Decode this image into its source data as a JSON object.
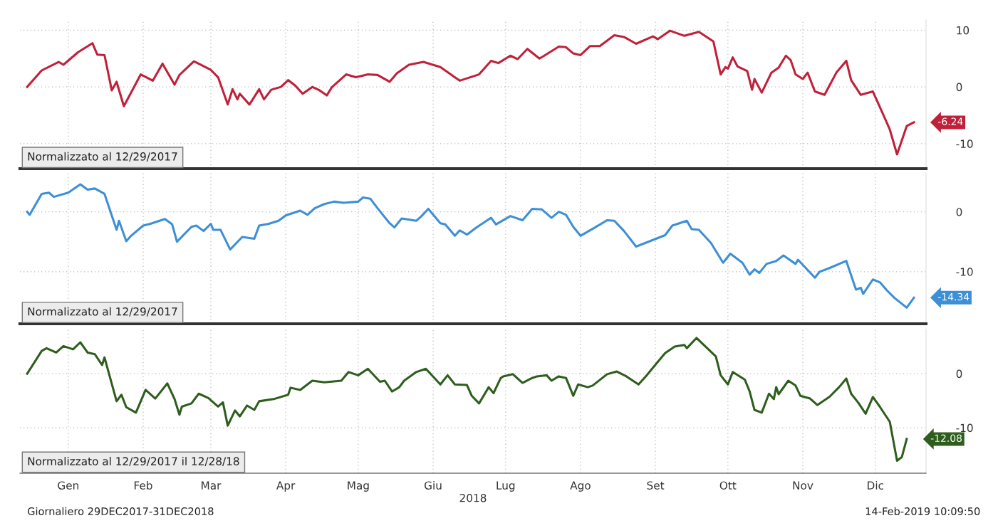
{
  "chart_data": [
    {
      "type": "line",
      "tick_labels": "y",
      "grid": true,
      "xlim": [
        "2017-12-26",
        "2019-01-05"
      ],
      "ylim": [
        -14.4,
        11.8
      ],
      "yticks": [
        10,
        0,
        -10
      ],
      "xticks": [
        {
          "value": "2018-01-15",
          "label": null
        },
        {
          "value": "2018-02-15",
          "label": null
        },
        {
          "value": "2018-03-15",
          "label": null
        },
        {
          "value": "2018-04-15",
          "label": null
        },
        {
          "value": "2018-05-15",
          "label": null
        },
        {
          "value": "2018-06-15",
          "label": null
        },
        {
          "value": "2018-07-15",
          "label": null
        },
        {
          "value": "2018-08-15",
          "label": null
        },
        {
          "value": "2018-09-15",
          "label": null
        },
        {
          "value": "2018-10-15",
          "label": null
        },
        {
          "value": "2018-11-15",
          "label": null
        },
        {
          "value": "2018-12-15",
          "label": null
        }
      ],
      "annotations": [
        "Normalizzato al 12/29/2017",
        {
          "text": "-6.24",
          "x": "2018-12-31",
          "y": -6.24
        }
      ],
      "series": [
        {
          "color": "#c0213a",
          "x": [
            "2017-12-29",
            "2018-01-04",
            "2018-01-11",
            "2018-01-13",
            "2018-01-19",
            "2018-01-25",
            "2018-01-27",
            "2018-01-30",
            "2018-02-02",
            "2018-02-04",
            "2018-02-07",
            "2018-02-14",
            "2018-02-19",
            "2018-02-23",
            "2018-02-28",
            "2018-03-02",
            "2018-03-08",
            "2018-03-15",
            "2018-03-18",
            "2018-03-22",
            "2018-03-24",
            "2018-03-26",
            "2018-03-27",
            "2018-03-31",
            "2018-04-04",
            "2018-04-06",
            "2018-04-09",
            "2018-04-13",
            "2018-04-16",
            "2018-04-19",
            "2018-04-22",
            "2018-04-26",
            "2018-04-29",
            "2018-05-02",
            "2018-05-04",
            "2018-05-10",
            "2018-05-14",
            "2018-05-19",
            "2018-05-23",
            "2018-05-28",
            "2018-05-31",
            "2018-06-05",
            "2018-06-11",
            "2018-06-18",
            "2018-06-23",
            "2018-06-26",
            "2018-07-04",
            "2018-07-09",
            "2018-07-12",
            "2018-07-17",
            "2018-07-20",
            "2018-07-24",
            "2018-07-29",
            "2018-07-31",
            "2018-08-06",
            "2018-08-09",
            "2018-08-12",
            "2018-08-15",
            "2018-08-19",
            "2018-08-23",
            "2018-08-29",
            "2018-09-02",
            "2018-09-07",
            "2018-09-14",
            "2018-09-16",
            "2018-09-21",
            "2018-09-27",
            "2018-10-03",
            "2018-10-09",
            "2018-10-12",
            "2018-10-14",
            "2018-10-15",
            "2018-10-17",
            "2018-10-19",
            "2018-10-23",
            "2018-10-25",
            "2018-10-26",
            "2018-10-29",
            "2018-11-02",
            "2018-11-05",
            "2018-11-08",
            "2018-11-10",
            "2018-11-12",
            "2018-11-15",
            "2018-11-17",
            "2018-11-20",
            "2018-11-24",
            "2018-11-26",
            "2018-11-29",
            "2018-12-03",
            "2018-12-05",
            "2018-12-09",
            "2018-12-14",
            "2018-12-18",
            "2018-12-21",
            "2018-12-24",
            "2018-12-28",
            "2018-12-31"
          ],
          "values": [
            0,
            2.9,
            4.4,
            3.9,
            6.1,
            7.7,
            5.7,
            5.6,
            -0.6,
            0.9,
            -3.4,
            2.2,
            1.1,
            4.1,
            0.4,
            2.1,
            4.5,
            3.0,
            1.7,
            -3.1,
            -0.4,
            -2.2,
            -1.2,
            -3.1,
            -0.4,
            -2.2,
            -0.5,
            0,
            1.2,
            0.2,
            -1.2,
            0,
            -0.6,
            -1.5,
            -0.1,
            2.2,
            1.7,
            2.2,
            2.1,
            0.9,
            2.4,
            3.9,
            4.4,
            3.5,
            2.0,
            1.1,
            2.2,
            4.6,
            4.2,
            5.5,
            4.9,
            6.7,
            5.0,
            5.5,
            7.1,
            7.0,
            5.9,
            5.6,
            7.2,
            7.2,
            9.1,
            8.8,
            7.6,
            8.9,
            8.4,
            9.9,
            9.0,
            9.7,
            8.0,
            2.2,
            3.5,
            3.2,
            5.2,
            3.6,
            2.8,
            -0.5,
            1.4,
            -1.0,
            2.5,
            3.4,
            5.5,
            4.7,
            2.2,
            1.4,
            2.5,
            -0.8,
            -1.4,
            0.2,
            2.6,
            4.6,
            1.2,
            -1.4,
            -0.8,
            -4.6,
            -7.5,
            -11.9,
            -6.9,
            -6.24
          ]
        }
      ]
    },
    {
      "type": "line",
      "tick_labels": "y",
      "grid": true,
      "xlim": [
        "2017-12-26",
        "2019-01-05"
      ],
      "ylim": [
        -18.7,
        6.5
      ],
      "yticks": [
        0,
        -10
      ],
      "xticks": [
        {
          "value": "2018-01-15",
          "label": null
        },
        {
          "value": "2018-02-15",
          "label": null
        },
        {
          "value": "2018-03-15",
          "label": null
        },
        {
          "value": "2018-04-15",
          "label": null
        },
        {
          "value": "2018-05-15",
          "label": null
        },
        {
          "value": "2018-06-15",
          "label": null
        },
        {
          "value": "2018-07-15",
          "label": null
        },
        {
          "value": "2018-08-15",
          "label": null
        },
        {
          "value": "2018-09-15",
          "label": null
        },
        {
          "value": "2018-10-15",
          "label": null
        },
        {
          "value": "2018-11-15",
          "label": null
        },
        {
          "value": "2018-12-15",
          "label": null
        }
      ],
      "annotations": [
        "Normalizzato al 12/29/2017",
        {
          "text": "-14.34",
          "x": "2018-12-31",
          "y": -14.34
        }
      ],
      "series": [
        {
          "color": "#3d8fd6",
          "x": [
            "2017-12-29",
            "2017-12-30",
            "2018-01-04",
            "2018-01-07",
            "2018-01-09",
            "2018-01-15",
            "2018-01-20",
            "2018-01-23",
            "2018-01-26",
            "2018-01-30",
            "2018-02-04",
            "2018-02-05",
            "2018-02-08",
            "2018-02-10",
            "2018-02-15",
            "2018-02-18",
            "2018-02-24",
            "2018-02-27",
            "2018-03-01",
            "2018-03-07",
            "2018-03-09",
            "2018-03-12",
            "2018-03-15",
            "2018-03-16",
            "2018-03-19",
            "2018-03-23",
            "2018-03-28",
            "2018-04-02",
            "2018-04-04",
            "2018-04-08",
            "2018-04-12",
            "2018-04-15",
            "2018-04-21",
            "2018-04-24",
            "2018-04-27",
            "2018-05-01",
            "2018-05-05",
            "2018-05-09",
            "2018-05-15",
            "2018-05-17",
            "2018-05-20",
            "2018-05-23",
            "2018-05-28",
            "2018-05-30",
            "2018-06-02",
            "2018-06-08",
            "2018-06-10",
            "2018-06-13",
            "2018-06-18",
            "2018-06-20",
            "2018-06-24",
            "2018-06-26",
            "2018-06-29",
            "2018-07-03",
            "2018-07-09",
            "2018-07-11",
            "2018-07-17",
            "2018-07-22",
            "2018-07-26",
            "2018-07-30",
            "2018-08-03",
            "2018-08-06",
            "2018-08-09",
            "2018-08-12",
            "2018-08-15",
            "2018-08-21",
            "2018-08-26",
            "2018-08-29",
            "2018-09-02",
            "2018-09-07",
            "2018-09-19",
            "2018-09-22",
            "2018-09-28",
            "2018-09-30",
            "2018-10-03",
            "2018-10-08",
            "2018-10-13",
            "2018-10-16",
            "2018-10-21",
            "2018-10-24",
            "2018-10-26",
            "2018-10-28",
            "2018-10-31",
            "2018-11-04",
            "2018-11-07",
            "2018-11-12",
            "2018-11-13",
            "2018-11-20",
            "2018-11-22",
            "2018-11-26",
            "2018-12-03",
            "2018-12-07",
            "2018-12-09",
            "2018-12-10",
            "2018-12-14",
            "2018-12-17",
            "2018-12-20",
            "2018-12-23",
            "2018-12-28",
            "2018-12-31"
          ],
          "values": [
            0,
            -0.5,
            3.0,
            3.2,
            2.5,
            3.2,
            4.6,
            3.7,
            3.9,
            3.0,
            -3.0,
            -1.5,
            -4.9,
            -4.0,
            -2.3,
            -2.0,
            -1.2,
            -2.1,
            -5.0,
            -2.5,
            -2.3,
            -3.2,
            -2.0,
            -3.0,
            -3.0,
            -6.3,
            -4.2,
            -4.5,
            -2.3,
            -2.0,
            -1.5,
            -0.6,
            0.2,
            -0.5,
            0.6,
            1.3,
            1.7,
            1.5,
            1.7,
            2.4,
            2.2,
            0.6,
            -1.9,
            -2.6,
            -1.1,
            -1.5,
            -0.8,
            0.5,
            -1.9,
            -2.1,
            -4.0,
            -3.1,
            -3.8,
            -2.6,
            -1.0,
            -2.1,
            -0.7,
            -1.4,
            0.5,
            0.4,
            -1.0,
            0,
            -0.5,
            -2.5,
            -4.0,
            -2.6,
            -1.4,
            -1.5,
            -3.2,
            -5.8,
            -3.9,
            -2.3,
            -1.5,
            -2.9,
            -3.0,
            -5.2,
            -8.5,
            -7.0,
            -8.5,
            -10.5,
            -9.6,
            -10.2,
            -8.7,
            -8.2,
            -7.3,
            -8.7,
            -8.0,
            -11.0,
            -10.0,
            -9.4,
            -8.2,
            -13.0,
            -12.7,
            -13.7,
            -11.3,
            -11.8,
            -13.2,
            -14.4,
            -16.0,
            -14.34
          ]
        }
      ]
    },
    {
      "type": "line",
      "grid": true,
      "xlabel": "2018",
      "xlim": [
        "2017-12-26",
        "2019-01-05"
      ],
      "ylim": [
        -18.4,
        8.3
      ],
      "yticks": [
        0,
        -10
      ],
      "xticks": [
        {
          "value": "2018-01-15",
          "label": "Gen"
        },
        {
          "value": "2018-02-15",
          "label": "Feb"
        },
        {
          "value": "2018-03-15",
          "label": "Mar"
        },
        {
          "value": "2018-04-15",
          "label": "Apr"
        },
        {
          "value": "2018-05-15",
          "label": "Mag"
        },
        {
          "value": "2018-06-15",
          "label": "Giu"
        },
        {
          "value": "2018-07-15",
          "label": "Lug"
        },
        {
          "value": "2018-08-15",
          "label": "Ago"
        },
        {
          "value": "2018-09-15",
          "label": "Set"
        },
        {
          "value": "2018-10-15",
          "label": "Ott"
        },
        {
          "value": "2018-11-15",
          "label": "Nov"
        },
        {
          "value": "2018-12-15",
          "label": "Dic"
        }
      ],
      "annotations": [
        "Normalizzato al 12/29/2017 il 12/28/18",
        {
          "text": "-12.08",
          "x": "2018-12-28",
          "y": -12.08
        },
        "Giornaliero 29DEC2017-31DEC2018",
        "14-Feb-2019 10:09:50"
      ],
      "series": [
        {
          "color": "#2e5e1e",
          "x": [
            "2017-12-29",
            "2018-01-04",
            "2018-01-06",
            "2018-01-10",
            "2018-01-13",
            "2018-01-17",
            "2018-01-20",
            "2018-01-23",
            "2018-01-26",
            "2018-01-29",
            "2018-01-30",
            "2018-02-04",
            "2018-02-06",
            "2018-02-08",
            "2018-02-12",
            "2018-02-16",
            "2018-02-20",
            "2018-02-25",
            "2018-02-28",
            "2018-03-02",
            "2018-03-03",
            "2018-03-07",
            "2018-03-10",
            "2018-03-14",
            "2018-03-18",
            "2018-03-20",
            "2018-03-22",
            "2018-03-25",
            "2018-03-27",
            "2018-03-30",
            "2018-04-02",
            "2018-04-04",
            "2018-04-10",
            "2018-04-16",
            "2018-04-17",
            "2018-04-21",
            "2018-04-26",
            "2018-05-01",
            "2018-05-08",
            "2018-05-11",
            "2018-05-15",
            "2018-05-19",
            "2018-05-24",
            "2018-05-26",
            "2018-05-29",
            "2018-06-01",
            "2018-06-03",
            "2018-06-08",
            "2018-06-12",
            "2018-06-18",
            "2018-06-21",
            "2018-06-24",
            "2018-06-29",
            "2018-07-01",
            "2018-07-04",
            "2018-07-08",
            "2018-07-10",
            "2018-07-13",
            "2018-07-14",
            "2018-07-18",
            "2018-07-22",
            "2018-07-26",
            "2018-07-28",
            "2018-08-01",
            "2018-08-03",
            "2018-08-06",
            "2018-08-09",
            "2018-08-12",
            "2018-08-14",
            "2018-08-18",
            "2018-08-20",
            "2018-08-26",
            "2018-08-30",
            "2018-09-03",
            "2018-09-08",
            "2018-09-11",
            "2018-09-19",
            "2018-09-23",
            "2018-09-27",
            "2018-09-28",
            "2018-10-02",
            "2018-10-10",
            "2018-10-12",
            "2018-10-15",
            "2018-10-17",
            "2018-10-22",
            "2018-10-24",
            "2018-10-26",
            "2018-10-29",
            "2018-11-01",
            "2018-11-03",
            "2018-11-04",
            "2018-11-05",
            "2018-11-09",
            "2018-11-12",
            "2018-11-14",
            "2018-11-18",
            "2018-11-21",
            "2018-11-26",
            "2018-11-30",
            "2018-12-03",
            "2018-12-05",
            "2018-12-08",
            "2018-12-11",
            "2018-12-14",
            "2018-12-17",
            "2018-12-21",
            "2018-12-24",
            "2018-12-26",
            "2018-12-28"
          ],
          "values": [
            0,
            4.2,
            4.7,
            3.9,
            5.1,
            4.5,
            5.8,
            3.9,
            3.6,
            1.6,
            3.0,
            -5.1,
            -3.9,
            -6.2,
            -7.2,
            -3.0,
            -4.6,
            -1.8,
            -4.7,
            -7.6,
            -6.1,
            -5.5,
            -3.7,
            -4.5,
            -6.1,
            -5.3,
            -9.6,
            -6.8,
            -7.9,
            -5.9,
            -6.7,
            -5.1,
            -4.7,
            -3.9,
            -2.6,
            -3.0,
            -1.3,
            -1.6,
            -1.3,
            0.3,
            -0.3,
            0.9,
            -1.5,
            -1.3,
            -3.3,
            -2.5,
            -1.3,
            0.3,
            0.9,
            -2.0,
            -0.3,
            -2.0,
            -2.1,
            -4.1,
            -5.5,
            -2.5,
            -3.6,
            -0.8,
            -0.5,
            -0.1,
            -1.7,
            -0.8,
            -0.5,
            -0.3,
            -1.3,
            -0.5,
            -0.8,
            -4.1,
            -2.0,
            -2.5,
            -2.2,
            -0.1,
            0.4,
            -0.5,
            -2.0,
            -0.5,
            3.8,
            5.0,
            5.3,
            4.7,
            6.6,
            3.2,
            -0.3,
            -2.0,
            0.3,
            -1.1,
            -3.3,
            -6.7,
            -7.2,
            -3.7,
            -4.7,
            -2.5,
            -3.8,
            -1.3,
            -2.2,
            -4.1,
            -4.6,
            -5.8,
            -4.3,
            -2.5,
            -0.9,
            -3.7,
            -5.4,
            -7.4,
            -4.3,
            -6.2,
            -8.9,
            -16.1,
            -15.4,
            -12.08
          ]
        }
      ]
    }
  ]
}
